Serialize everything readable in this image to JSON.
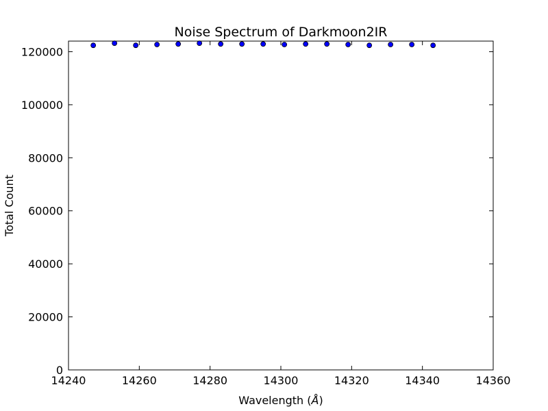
{
  "chart_data": {
    "type": "scatter",
    "title": "Noise Spectrum of Darkmoon2IR",
    "xlabel": "Wavelength (",
    "xlabel_unit": "Å",
    "xlabel_close": ")",
    "ylabel": "Total Count",
    "xlim": [
      14240,
      14360
    ],
    "ylim": [
      0,
      124000
    ],
    "xticks": [
      14240,
      14260,
      14280,
      14300,
      14320,
      14340,
      14360
    ],
    "yticks": [
      0,
      20000,
      40000,
      60000,
      80000,
      100000,
      120000
    ],
    "grid": false,
    "marker_color": "#0000ff",
    "series": [
      {
        "x": [
          14247,
          14253,
          14259,
          14265,
          14271,
          14277,
          14283,
          14289,
          14295,
          14301,
          14307,
          14313,
          14319,
          14325,
          14331,
          14337,
          14343
        ],
        "y": [
          122400,
          123200,
          122400,
          122700,
          122900,
          123200,
          122900,
          122900,
          122900,
          122700,
          122900,
          122900,
          122700,
          122400,
          122700,
          122700,
          122400
        ]
      }
    ]
  }
}
